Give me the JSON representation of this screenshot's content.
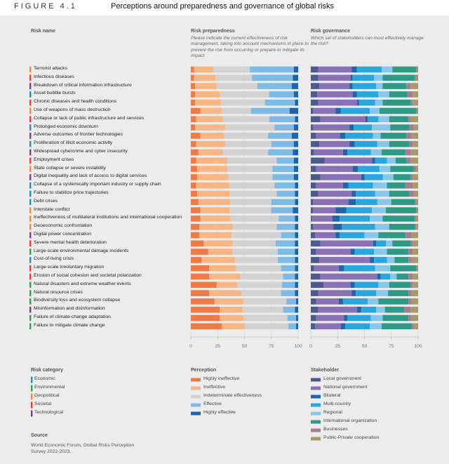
{
  "header": {
    "figure_label": "FIGURE 4.1",
    "title": "Perceptions around preparedness and governance of global risks"
  },
  "risk_name_label": "Risk name",
  "risk_categories": {
    "title": "Risk category",
    "items": [
      {
        "name": "Economic",
        "color": "#2a8fa8"
      },
      {
        "name": "Environmental",
        "color": "#3a9c5a"
      },
      {
        "name": "Geopolitical",
        "color": "#f08a3c"
      },
      {
        "name": "Societal",
        "color": "#e0433a"
      },
      {
        "name": "Technological",
        "color": "#7c3d8f"
      }
    ]
  },
  "rows": [
    {
      "name": "Terrorist attacks",
      "category": "Geopolitical"
    },
    {
      "name": "Infectious diseases",
      "category": "Societal"
    },
    {
      "name": "Breakdown of critical information infrastructure",
      "category": "Technological"
    },
    {
      "name": "Asset bubble bursts",
      "category": "Economic"
    },
    {
      "name": "Chronic diseases and health conditions",
      "category": "Societal"
    },
    {
      "name": "Use of weapons of mass destruction",
      "category": "Geopolitical"
    },
    {
      "name": "Collapse or lack of public infrastructure and services",
      "category": "Societal"
    },
    {
      "name": "Prolonged economic downturn",
      "category": "Economic"
    },
    {
      "name": "Adverse outcomes of frontier technologies",
      "category": "Technological"
    },
    {
      "name": "Proliferation of illicit economic activity",
      "category": "Economic"
    },
    {
      "name": "Widespread cybercrime and cyber insecurity",
      "category": "Technological"
    },
    {
      "name": "Employment crises",
      "category": "Societal"
    },
    {
      "name": "State collapse or severe instability",
      "category": "Geopolitical"
    },
    {
      "name": "Digital inequality and lack of access to digital services",
      "category": "Technological"
    },
    {
      "name": "Collapse of a systemically important industry or supply chain",
      "category": "Economic"
    },
    {
      "name": "Failure to stabilize price trajectories",
      "category": "Economic"
    },
    {
      "name": "Debt crises",
      "category": "Economic"
    },
    {
      "name": "Interstate conflict",
      "category": "Geopolitical"
    },
    {
      "name": "Ineffectiveness of multilateral institutions and international cooperation",
      "category": "Geopolitical"
    },
    {
      "name": "Geoeconomic confrontation",
      "category": "Geopolitical"
    },
    {
      "name": "Digital power concentration",
      "category": "Technological"
    },
    {
      "name": "Severe mental health deterioration",
      "category": "Societal"
    },
    {
      "name": "Large-scale environmental damage incidents",
      "category": "Environmental"
    },
    {
      "name": "Cost-of-living crisis",
      "category": "Economic"
    },
    {
      "name": "Large-scale involuntary migration",
      "category": "Societal"
    },
    {
      "name": "Erosion of social cohesion and societal polarization",
      "category": "Societal"
    },
    {
      "name": "Natural disasters and extreme weather events",
      "category": "Environmental"
    },
    {
      "name": "Natural resource crises",
      "category": "Environmental"
    },
    {
      "name": "Biodiversity loss and ecosystem collapse",
      "category": "Environmental"
    },
    {
      "name": "Misinformation and disinformation",
      "category": "Technological"
    },
    {
      "name": "Failure of climate-change adaptation",
      "category": "Environmental"
    },
    {
      "name": "Failure to mitigate climate change",
      "category": "Environmental"
    }
  ],
  "chart_data": [
    {
      "type": "bar",
      "orientation": "horizontal",
      "stacked": true,
      "title": "Risk preparedness",
      "subtitle": "Please indicate the current effectiveness of risk management, taking into account mechanisms in place to prevent the risk from occurring or prepare to mitigate its impact",
      "legend_title": "Perception",
      "xlim": [
        0,
        100
      ],
      "xticks": [
        0,
        25,
        50,
        75,
        100
      ],
      "grid": true,
      "series": [
        {
          "name": "Highly ineffective",
          "color": "#ee7a45",
          "values": [
            3,
            3,
            4,
            4,
            4,
            9,
            5,
            4,
            9,
            5,
            7,
            5,
            6,
            6,
            5,
            6,
            7,
            9,
            9,
            8,
            8,
            12,
            16,
            10,
            17,
            17,
            24,
            17,
            22,
            27,
            27,
            29
          ]
        },
        {
          "name": "Ineffective",
          "color": "#f7b683",
          "values": [
            18,
            20,
            20,
            23,
            24,
            20,
            25,
            28,
            22,
            27,
            23,
            29,
            28,
            29,
            31,
            30,
            30,
            27,
            28,
            31,
            30,
            27,
            23,
            31,
            25,
            29,
            19,
            30,
            27,
            21,
            22,
            21
          ]
        },
        {
          "name": "Indeterminate effectiveness",
          "color": "#d2d2d2",
          "values": [
            34,
            34,
            38,
            46,
            41,
            27,
            43,
            46,
            41,
            43,
            42,
            46,
            42,
            41,
            42,
            44,
            38,
            39,
            45,
            41,
            46,
            40,
            42,
            40,
            42,
            40,
            42,
            37,
            40,
            38,
            41,
            41
          ]
        },
        {
          "name": "Effective",
          "color": "#7dbbe6",
          "values": [
            41,
            38,
            32,
            23,
            28,
            36,
            24,
            18,
            22,
            21,
            23,
            16,
            20,
            20,
            19,
            17,
            22,
            20,
            15,
            17,
            13,
            18,
            16,
            16,
            13,
            11,
            12,
            13,
            9,
            11,
            8,
            7
          ]
        },
        {
          "name": "Highly effective",
          "color": "#1f63aa",
          "values": [
            4,
            5,
            6,
            4,
            3,
            8,
            3,
            4,
            6,
            4,
            5,
            4,
            4,
            4,
            3,
            3,
            3,
            5,
            3,
            3,
            3,
            3,
            3,
            3,
            3,
            3,
            3,
            3,
            2,
            3,
            2,
            2
          ]
        }
      ]
    },
    {
      "type": "bar",
      "orientation": "horizontal",
      "stacked": true,
      "title": "Risk governance",
      "subtitle": "Which set of stakeholders can most effectively manage the risk?",
      "legend_title": "Stakeholder",
      "xlim": [
        0,
        100
      ],
      "xticks": [
        0,
        25,
        50,
        75,
        100
      ],
      "grid": true,
      "series": [
        {
          "name": "Local government",
          "color": "#4d5a8f",
          "values": [
            7,
            7,
            8,
            6,
            7,
            2,
            9,
            2,
            5,
            8,
            3,
            13,
            5,
            9,
            5,
            7,
            2,
            2,
            1,
            2,
            4,
            9,
            5,
            8,
            3,
            9,
            12,
            7,
            5,
            7,
            5,
            4
          ]
        },
        {
          "name": "National government",
          "color": "#8a70b4",
          "values": [
            31,
            30,
            28,
            33,
            36,
            21,
            42,
            34,
            22,
            28,
            27,
            44,
            34,
            38,
            25,
            31,
            33,
            21,
            19,
            19,
            19,
            49,
            32,
            47,
            23,
            53,
            25,
            31,
            21,
            36,
            26,
            24
          ]
        },
        {
          "name": "Bilateral",
          "color": "#1f66a8",
          "values": [
            5,
            2,
            3,
            4,
            2,
            5,
            2,
            4,
            5,
            5,
            4,
            3,
            5,
            3,
            5,
            4,
            7,
            10,
            7,
            8,
            4,
            3,
            4,
            4,
            5,
            3,
            4,
            4,
            4,
            4,
            3,
            4
          ]
        },
        {
          "name": "Multi-country",
          "color": "#2aa6de",
          "values": [
            23,
            20,
            22,
            20,
            15,
            27,
            10,
            17,
            26,
            21,
            22,
            11,
            20,
            17,
            23,
            18,
            20,
            24,
            28,
            31,
            23,
            9,
            18,
            12,
            29,
            9,
            22,
            19,
            23,
            14,
            22,
            23
          ]
        },
        {
          "name": "Regional",
          "color": "#86c7ea",
          "values": [
            10,
            8,
            6,
            10,
            7,
            9,
            10,
            17,
            7,
            11,
            10,
            8,
            10,
            10,
            13,
            13,
            13,
            13,
            12,
            13,
            13,
            6,
            12,
            7,
            14,
            6,
            10,
            11,
            10,
            8,
            11,
            11
          ]
        },
        {
          "name": "International organization",
          "color": "#2e9985",
          "values": [
            22,
            30,
            22,
            17,
            26,
            34,
            18,
            18,
            24,
            19,
            22,
            10,
            22,
            16,
            17,
            19,
            22,
            28,
            30,
            24,
            25,
            17,
            20,
            13,
            24,
            11,
            20,
            19,
            28,
            18,
            24,
            28
          ]
        },
        {
          "name": "Businesses",
          "color": "#a47d8c",
          "values": [
            1,
            1,
            4,
            5,
            2,
            1,
            2,
            4,
            5,
            3,
            5,
            4,
            2,
            2,
            7,
            4,
            1,
            1,
            1,
            1,
            6,
            2,
            4,
            3,
            1,
            4,
            2,
            3,
            3,
            6,
            3,
            2
          ]
        },
        {
          "name": "Public-Private cooperation",
          "color": "#a8996a",
          "values": [
            1,
            2,
            7,
            5,
            5,
            1,
            7,
            4,
            6,
            5,
            7,
            7,
            2,
            5,
            5,
            4,
            2,
            1,
            2,
            2,
            6,
            5,
            5,
            6,
            1,
            5,
            5,
            6,
            6,
            7,
            6,
            4
          ]
        }
      ]
    }
  ],
  "source": {
    "title": "Source",
    "text": "World Economic Forum, Global Risks Perception Survey 2022-2023."
  }
}
